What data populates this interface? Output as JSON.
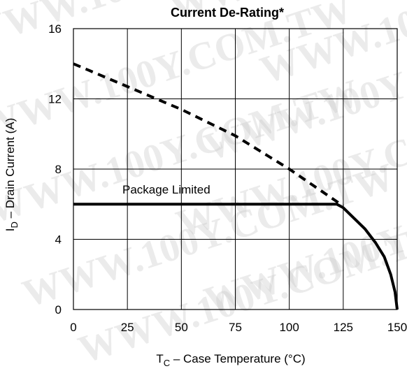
{
  "chart_data": {
    "type": "line",
    "title": "Current De-Rating*",
    "xlabel_main": "T",
    "xlabel_sub": "C",
    "xlabel_rest": " – Case Temperature (°C)",
    "ylabel_main": "I",
    "ylabel_sub": "D",
    "ylabel_rest": " – Drain Current (A)",
    "xlim": [
      0,
      150
    ],
    "ylim": [
      0,
      16
    ],
    "xticks": [
      0,
      25,
      50,
      75,
      100,
      125,
      150
    ],
    "yticks": [
      0,
      4,
      8,
      12,
      16
    ],
    "grid": true,
    "annotation": "Package Limited",
    "watermark": "WWW.100Y.COM.TW",
    "series": [
      {
        "style": "dashed",
        "x": [
          0,
          25,
          50,
          75,
          100,
          125
        ],
        "y": [
          14.0,
          12.7,
          11.4,
          9.9,
          8.0,
          5.9
        ]
      },
      {
        "style": "solid",
        "x": [
          0,
          122,
          125,
          130,
          135,
          140,
          144,
          147,
          149,
          150
        ],
        "y": [
          6.0,
          6.0,
          5.8,
          5.2,
          4.6,
          3.8,
          3.0,
          2.0,
          1.0,
          0.0
        ]
      }
    ],
    "colors": {
      "line": "#000000",
      "grid": "#000000",
      "background": "#ffffff",
      "watermark": "#c8c8c8"
    }
  }
}
